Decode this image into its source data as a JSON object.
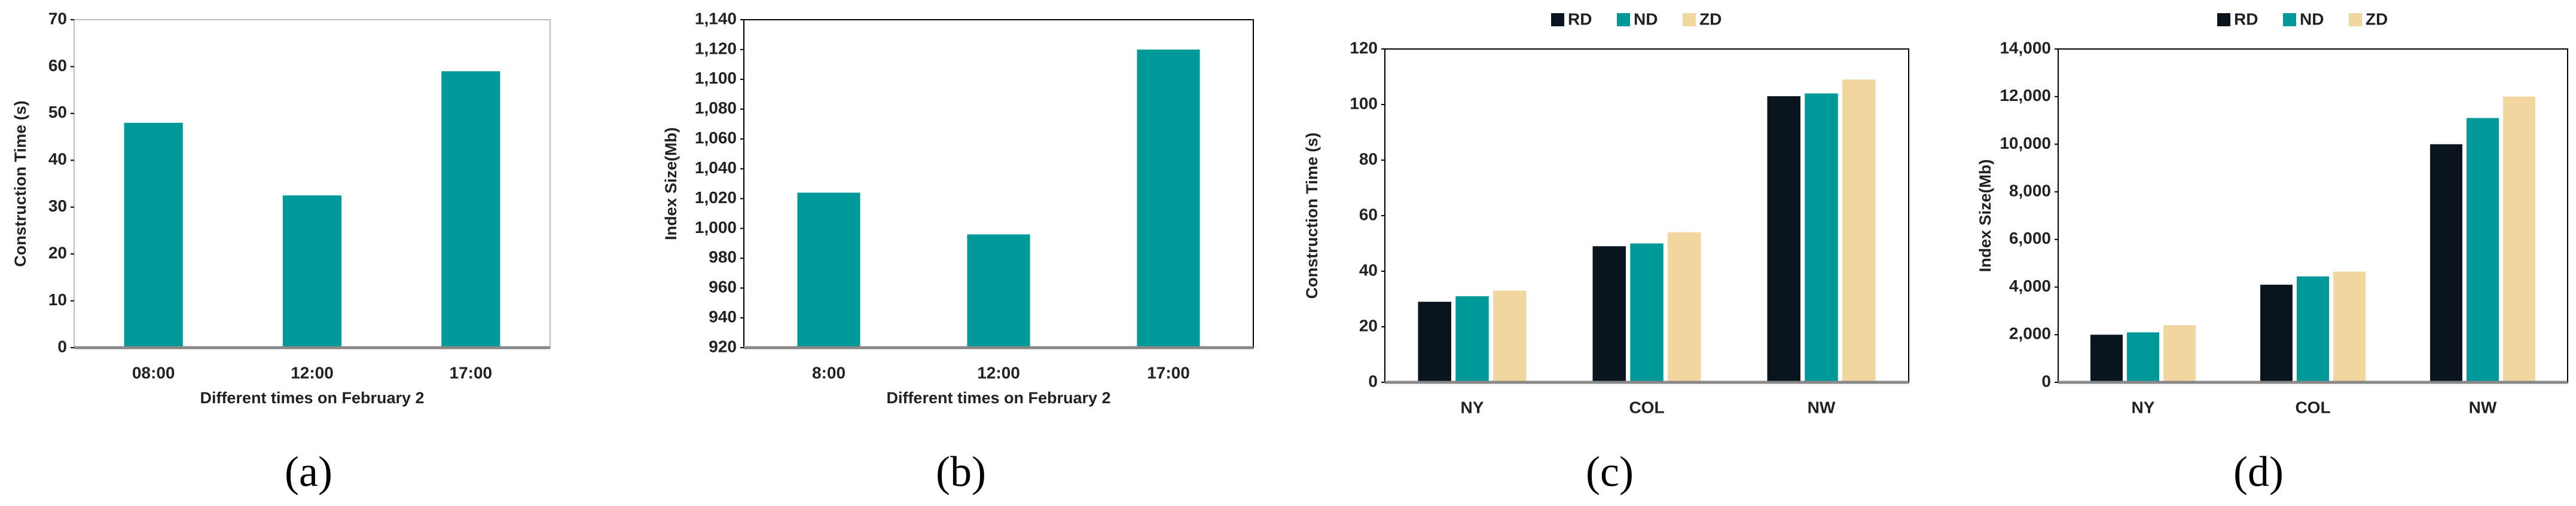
{
  "chart_data": [
    {
      "type": "bar",
      "caption": "(a)",
      "x_label": "Different times on February 2",
      "y_label": "Construction Time  (s)",
      "categories": [
        "08:00",
        "12:00",
        "17:00"
      ],
      "values": [
        48,
        32.5,
        59
      ],
      "color": "#009999",
      "ylim": [
        0,
        70
      ],
      "yticks": [
        0,
        10,
        20,
        30,
        40,
        50,
        60,
        70
      ]
    },
    {
      "type": "bar",
      "caption": "(b)",
      "x_label": "Different times on February 2",
      "y_label": "Index Size(Mb)",
      "categories": [
        "8:00",
        "12:00",
        "17:00"
      ],
      "values": [
        1024,
        996,
        1120
      ],
      "color": "#009999",
      "ylim": [
        920,
        1140
      ],
      "yticks": [
        920,
        940,
        960,
        980,
        {
          "value": 1000,
          "label": "1,000"
        },
        {
          "value": 1020,
          "label": "1,020"
        },
        {
          "value": 1040,
          "label": "1,040"
        },
        {
          "value": 1060,
          "label": "1,060"
        },
        {
          "value": 1080,
          "label": "1,080"
        },
        {
          "value": 1100,
          "label": "1,100"
        },
        {
          "value": 1120,
          "label": "1,120"
        },
        {
          "value": 1140,
          "label": "1,140"
        }
      ]
    },
    {
      "type": "grouped_bar",
      "caption": "(c)",
      "y_label": "Construction Time  (s)",
      "legend": "top",
      "categories": [
        "NY",
        "COL",
        "NW"
      ],
      "series": [
        {
          "name": "RD",
          "color": "#0a141e",
          "values": [
            29,
            49,
            103
          ]
        },
        {
          "name": "ND",
          "color": "#009999",
          "values": [
            31,
            50,
            104
          ]
        },
        {
          "name": "ZD",
          "color": "#f2d6a0",
          "values": [
            33,
            54,
            109
          ]
        }
      ],
      "ylim": [
        0,
        120
      ],
      "yticks": [
        0,
        20,
        40,
        60,
        80,
        100,
        120
      ]
    },
    {
      "type": "grouped_bar",
      "caption": "(d)",
      "y_label": "Index Size(Mb)",
      "legend": "top",
      "categories": [
        "NY",
        "COL",
        "NW"
      ],
      "series": [
        {
          "name": "RD",
          "color": "#0a141e",
          "values": [
            2000,
            4100,
            10000
          ]
        },
        {
          "name": "ND",
          "color": "#009999",
          "values": [
            2100,
            4450,
            11100
          ]
        },
        {
          "name": "ZD",
          "color": "#f2d6a0",
          "values": [
            2400,
            4650,
            12000
          ]
        }
      ],
      "ylim": [
        0,
        14000
      ],
      "yticks": [
        0,
        {
          "value": 2000,
          "label": "2,000"
        },
        {
          "value": 4000,
          "label": "4,000"
        },
        {
          "value": 6000,
          "label": "6,000"
        },
        {
          "value": 8000,
          "label": "8,000"
        },
        {
          "value": 10000,
          "label": "10,000"
        },
        {
          "value": 12000,
          "label": "12,000"
        },
        {
          "value": 14000,
          "label": "14,000"
        }
      ]
    }
  ]
}
